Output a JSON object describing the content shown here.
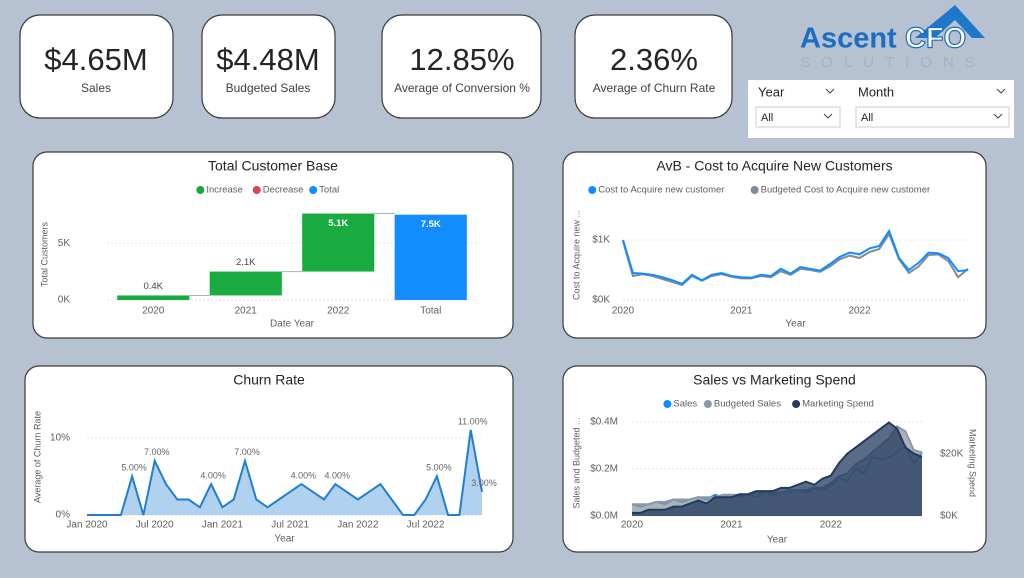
{
  "kpis": [
    {
      "value": "$4.65M",
      "label": "Sales"
    },
    {
      "value": "$4.48M",
      "label": "Budgeted Sales"
    },
    {
      "value": "12.85%",
      "label": "Average of Conversion %"
    },
    {
      "value": "2.36%",
      "label": "Average of Churn Rate"
    }
  ],
  "logo": {
    "name": "Ascent",
    "accent": "CFO",
    "tagline": "SOLUTIONS"
  },
  "slicers": [
    {
      "label": "Year",
      "value": "All"
    },
    {
      "label": "Month",
      "value": "All"
    }
  ],
  "chart_data": [
    {
      "type": "waterfall",
      "title": "Total Customer Base",
      "x_label": "Date Year",
      "y_label": "Total Customers",
      "categories": [
        "2020",
        "2021",
        "2022",
        "Total"
      ],
      "series": [
        {
          "name": "Increase",
          "color": "#1aab40",
          "values": [
            400,
            2100,
            5100,
            null
          ],
          "value_labels": [
            "0.4K",
            "2.1K",
            "5.1K",
            null
          ]
        },
        {
          "name": "Decrease",
          "color": "#d64550",
          "values": [
            null,
            null,
            null,
            null
          ]
        },
        {
          "name": "Total",
          "color": "#118dff",
          "values": [
            null,
            null,
            null,
            7500
          ],
          "value_labels": [
            null,
            null,
            null,
            "7.5K"
          ]
        }
      ],
      "ylim": [
        0,
        8000
      ],
      "yticks": [
        {
          "value": 0,
          "label": "0K"
        },
        {
          "value": 5000,
          "label": "5K"
        }
      ],
      "grid": true
    },
    {
      "type": "line",
      "title": "AvB - Cost to Acquire New Customers",
      "x_label": "Year",
      "y_label": "Cost to Acquire new ...",
      "categories": [
        "2020",
        null,
        null,
        null,
        null,
        null,
        null,
        null,
        null,
        null,
        null,
        null,
        "2021",
        null,
        null,
        null,
        null,
        null,
        null,
        null,
        null,
        null,
        null,
        null,
        "2022",
        null,
        null,
        null,
        null,
        null,
        null,
        null,
        null,
        null,
        null,
        null
      ],
      "series": [
        {
          "name": "Cost to Acquire new customer",
          "color": "#118dff",
          "values": [
            1000,
            450,
            440,
            420,
            380,
            330,
            270,
            420,
            330,
            420,
            450,
            400,
            380,
            370,
            420,
            400,
            520,
            440,
            550,
            520,
            490,
            600,
            720,
            790,
            760,
            860,
            900,
            1150,
            700,
            500,
            620,
            790,
            780,
            700,
            480,
            500
          ]
        },
        {
          "name": "Budgeted Cost to Acquire new customer",
          "color": "#808b96",
          "values": [
            980,
            400,
            430,
            400,
            350,
            300,
            250,
            400,
            320,
            400,
            430,
            390,
            360,
            360,
            400,
            380,
            480,
            420,
            520,
            500,
            470,
            560,
            680,
            740,
            700,
            800,
            850,
            1100,
            680,
            450,
            560,
            750,
            760,
            650,
            380,
            520
          ]
        }
      ],
      "ylim": [
        0,
        1500
      ],
      "yticks": [
        {
          "value": 0,
          "label": "$0K"
        },
        {
          "value": 1000,
          "label": "$1K"
        }
      ],
      "grid": true
    },
    {
      "type": "area",
      "title": "Churn Rate",
      "x_label": "Year",
      "y_label": "Average of Churn Rate",
      "color": "#1f7fd1",
      "categories": [
        "Jan 2020",
        null,
        null,
        null,
        null,
        null,
        "Jul 2020",
        null,
        null,
        null,
        null,
        null,
        "Jan 2021",
        null,
        null,
        null,
        null,
        null,
        "Jul 2021",
        null,
        null,
        null,
        null,
        null,
        "Jan 2022",
        null,
        null,
        null,
        null,
        null,
        "Jul 2022",
        null,
        null,
        null,
        null,
        null
      ],
      "values": [
        0,
        0,
        0,
        0,
        5,
        0,
        7,
        4,
        2,
        2,
        1,
        4,
        1,
        2,
        7,
        2,
        1,
        2,
        3,
        4,
        3,
        2,
        4,
        3,
        2,
        3,
        4,
        2,
        0,
        0,
        2,
        5,
        0,
        0,
        11,
        3
      ],
      "value_labels": [
        null,
        null,
        null,
        null,
        "5.00%",
        null,
        "7.00%",
        null,
        null,
        null,
        null,
        "4.00%",
        null,
        null,
        "7.00%",
        null,
        null,
        null,
        null,
        "4.00%",
        null,
        null,
        "4.00%",
        null,
        null,
        null,
        null,
        null,
        null,
        null,
        null,
        "5.00%",
        null,
        null,
        "11.00%",
        "3.00%"
      ],
      "ylim": [
        0,
        15
      ],
      "yticks": [
        {
          "value": 0,
          "label": "0%"
        },
        {
          "value": 10,
          "label": "10%"
        }
      ],
      "grid": true
    },
    {
      "type": "area",
      "title": "Sales vs Marketing Spend",
      "x_label": "Year",
      "y_label": "Sales and Budgeted ...",
      "y2_label": "Marketing Spend",
      "categories": [
        "2020",
        null,
        null,
        null,
        null,
        null,
        null,
        null,
        null,
        null,
        null,
        null,
        "2021",
        null,
        null,
        null,
        null,
        null,
        null,
        null,
        null,
        null,
        null,
        null,
        "2022",
        null,
        null,
        null,
        null,
        null,
        null,
        null,
        null,
        null,
        null,
        null
      ],
      "series": [
        {
          "name": "Sales",
          "color": "#118dff",
          "fill": false,
          "values": [
            50000,
            40000,
            50000,
            60000,
            50000,
            70000,
            60000,
            70000,
            80000,
            70000,
            90000,
            80000,
            90000,
            80000,
            90000,
            80000,
            100000,
            90000,
            100000,
            100000,
            110000,
            100000,
            120000,
            110000,
            130000,
            160000,
            150000,
            200000,
            180000,
            250000,
            240000,
            250000,
            270000,
            300000,
            220000,
            270000
          ]
        },
        {
          "name": "Budgeted Sales",
          "color": "#8f99a3",
          "fill": true,
          "values": [
            50000,
            50000,
            50000,
            60000,
            60000,
            70000,
            70000,
            70000,
            80000,
            80000,
            80000,
            90000,
            90000,
            90000,
            90000,
            100000,
            100000,
            100000,
            100000,
            110000,
            110000,
            110000,
            120000,
            120000,
            140000,
            170000,
            180000,
            220000,
            240000,
            270000,
            300000,
            330000,
            380000,
            360000,
            280000,
            270000
          ]
        },
        {
          "name": "Marketing Spend",
          "color": "#223a5e",
          "fill": true,
          "axis": "y2",
          "values": [
            1000,
            1000,
            2000,
            2000,
            2000,
            3000,
            3000,
            4000,
            5000,
            4000,
            6000,
            6000,
            6000,
            7000,
            7000,
            8000,
            8000,
            8000,
            9000,
            9000,
            10000,
            11000,
            10000,
            12000,
            13000,
            17000,
            20000,
            22000,
            24000,
            26000,
            28000,
            30000,
            28000,
            22000,
            20000,
            19000
          ]
        }
      ],
      "ylim": [
        0,
        450000
      ],
      "yticks": [
        {
          "value": 0,
          "label": "$0.0M"
        },
        {
          "value": 200000,
          "label": "$0.2M"
        },
        {
          "value": 400000,
          "label": "$0.4M"
        }
      ],
      "y2lim": [
        0,
        34000
      ],
      "y2ticks": [
        {
          "value": 0,
          "label": "$0K"
        },
        {
          "value": 20000,
          "label": "$20K"
        }
      ],
      "grid": true
    }
  ]
}
